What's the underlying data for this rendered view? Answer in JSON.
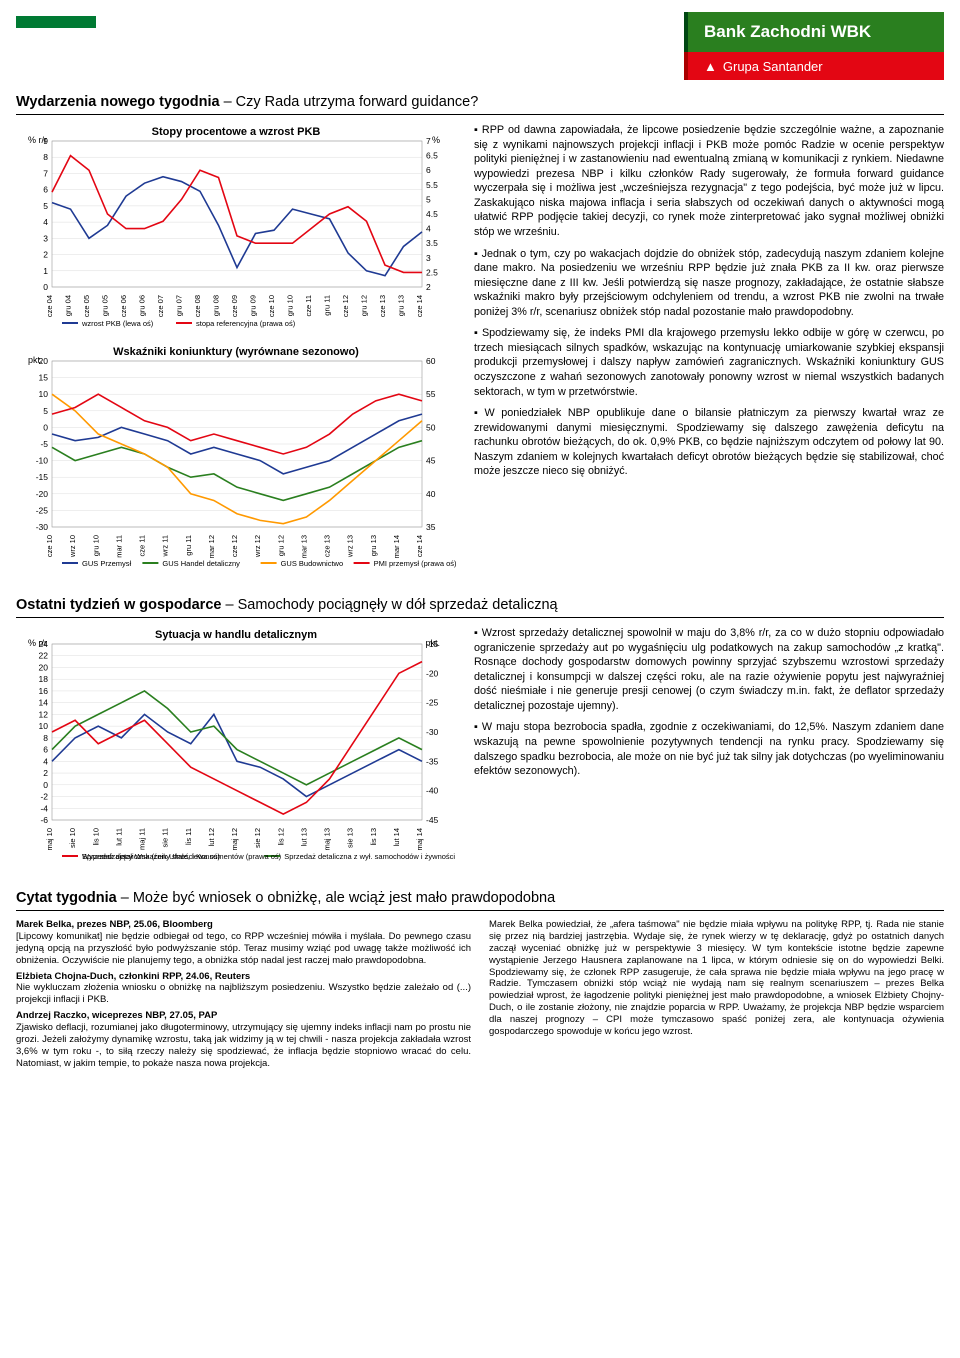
{
  "brand": {
    "name": "Bank Zachodni WBK",
    "group": "Grupa Santander"
  },
  "accent_green": "#007a33",
  "brand_green": "#2a7f1f",
  "brand_red": "#e30613",
  "section1": {
    "title": "Wydarzenia nowego tygodnia",
    "subtitle": "– Czy Rada utrzyma forward guidance?"
  },
  "chart1": {
    "title": "Stopy procentowe a wzrost PKB",
    "type": "line",
    "left_label": "% r/r",
    "right_label": "%",
    "left_ticks": [
      0,
      1,
      2,
      3,
      4,
      5,
      6,
      7,
      8,
      9
    ],
    "right_ticks": [
      2.0,
      2.5,
      3.0,
      3.5,
      4.0,
      4.5,
      5.0,
      5.5,
      6.0,
      6.5,
      7.0
    ],
    "x_labels": [
      "cze 04",
      "gru 04",
      "cze 05",
      "gru 05",
      "cze 06",
      "gru 06",
      "cze 07",
      "gru 07",
      "cze 08",
      "gru 08",
      "cze 09",
      "gru 09",
      "cze 10",
      "gru 10",
      "cze 11",
      "gru 11",
      "cze 12",
      "gru 12",
      "cze 13",
      "gru 13",
      "cze 14"
    ],
    "series1": {
      "name": "wzrost PKB (lewa oś)",
      "color": "#1f3a93",
      "values": [
        5.2,
        4.8,
        3.0,
        3.8,
        5.6,
        6.4,
        6.8,
        6.5,
        5.9,
        3.8,
        1.2,
        3.3,
        3.5,
        4.8,
        4.5,
        4.2,
        2.1,
        1.0,
        0.7,
        2.5,
        3.4
      ]
    },
    "series2": {
      "name": "stopa referencyjna (prawa oś)",
      "color": "#e30613",
      "values": [
        5.25,
        6.5,
        6.0,
        4.5,
        4.0,
        4.0,
        4.25,
        5.0,
        6.0,
        5.75,
        3.75,
        3.5,
        3.5,
        3.5,
        4.0,
        4.5,
        4.75,
        4.25,
        2.75,
        2.5,
        2.5
      ]
    }
  },
  "chart2": {
    "title": "Wskaźniki koniunktury (wyrównane sezonowo)",
    "type": "line",
    "left_label": "pkt.",
    "left_ticks": [
      -30,
      -25,
      -20,
      -15,
      -10,
      -5,
      0,
      5,
      10,
      15,
      20
    ],
    "right_ticks": [
      35,
      40,
      45,
      50,
      55,
      60
    ],
    "x_labels": [
      "cze 10",
      "wrz 10",
      "gru 10",
      "mar 11",
      "cze 11",
      "wrz 11",
      "gru 11",
      "mar 12",
      "cze 12",
      "wrz 12",
      "gru 12",
      "mar 13",
      "cze 13",
      "wrz 13",
      "gru 13",
      "mar 14",
      "cze 14"
    ],
    "series": [
      {
        "name": "GUS Przemysł",
        "color": "#1f3a93",
        "values": [
          -2,
          -4,
          -3,
          0,
          -2,
          -4,
          -8,
          -6,
          -8,
          -10,
          -14,
          -12,
          -10,
          -6,
          -2,
          2,
          4
        ]
      },
      {
        "name": "GUS Handel detaliczny",
        "color": "#2a7f1f",
        "values": [
          -6,
          -10,
          -8,
          -6,
          -8,
          -12,
          -15,
          -14,
          -18,
          -20,
          -22,
          -20,
          -18,
          -14,
          -10,
          -6,
          -4
        ]
      },
      {
        "name": "GUS Budownictwo",
        "color": "#ff9900",
        "values": [
          10,
          5,
          -2,
          -5,
          -8,
          -12,
          -20,
          -22,
          -26,
          -28,
          -29,
          -27,
          -22,
          -16,
          -10,
          -4,
          2
        ]
      },
      {
        "name": "PMI przemysł (prawa oś)",
        "color": "#e30613",
        "values": [
          52,
          53,
          55,
          53,
          51,
          50,
          48,
          49,
          48,
          47,
          46,
          47,
          49,
          52,
          54,
          55,
          54
        ]
      }
    ]
  },
  "bullets1": [
    "RPP od dawna zapowiadała, że lipcowe posiedzenie będzie szczególnie ważne, a zapoznanie się z wynikami najnowszych projekcji inflacji i PKB może pomóc Radzie w ocenie perspektyw polityki pieniężnej i w zastanowieniu nad ewentualną zmianą w komunikacji z rynkiem. Niedawne wypowiedzi prezesa NBP i kilku członków Rady sugerowały, że formuła forward guidance wyczerpała się i możliwa jest „wcześniejsza rezygnacja\" z tego podejścia, być może już w lipcu. Zaskakująco niska majowa inflacja i seria słabszych od oczekiwań danych o aktywności mogą ułatwić RPP podjęcie takiej decyzji, co rynek może zinterpretować jako sygnał możliwej obniżki stóp we wrześniu.",
    "Jednak o tym, czy po wakacjach dojdzie do obniżek stóp, zadecydują naszym zdaniem kolejne dane makro. Na posiedzeniu we wrześniu RPP będzie już znała PKB za II kw. oraz pierwsze miesięczne dane z III kw. Jeśli potwierdzą się nasze prognozy, zakładające, że ostatnie słabsze wskaźniki makro były przejściowym odchyleniem od trendu, a wzrost PKB nie zwolni na trwałe poniżej 3% r/r, scenariusz obniżek stóp nadal pozostanie mało prawdopodobny.",
    "Spodziewamy się, że indeks PMI dla krajowego przemysłu lekko odbije w górę w czerwcu, po trzech miesiącach silnych spadków, wskazując na kontynuację umiarkowanie szybkiej ekspansji produkcji przemysłowej i dalszy napływ zamówień zagranicznych. Wskaźniki koniunktury GUS oczyszczone z wahań sezonowych zanotowały ponowny wzrost w niemal wszystkich badanych sektorach, w tym w przetwórstwie.",
    "W poniedziałek NBP opublikuje dane o bilansie płatniczym za pierwszy kwartał wraz ze zrewidowanymi danymi miesięcznymi. Spodziewamy się dalszego zawężenia deficytu na rachunku obrotów bieżących, do ok. 0,9% PKB, co będzie najniższym odczytem od połowy lat 90. Naszym zdaniem w kolejnych kwartałach deficyt obrotów bieżących będzie się stabilizował, choć może jeszcze nieco się obniżyć."
  ],
  "section2": {
    "title": "Ostatni tydzień w gospodarce",
    "subtitle": "– Samochody pociągnęły w dół sprzedaż detaliczną"
  },
  "chart3": {
    "title": "Sytuacja w handlu detalicznym",
    "type": "line",
    "left_label": "% r/r",
    "right_label": "pkt.",
    "left_ticks": [
      -6,
      -4,
      -2,
      0,
      2,
      4,
      6,
      8,
      10,
      12,
      14,
      16,
      18,
      20,
      22,
      24
    ],
    "right_ticks": [
      -45,
      -40,
      -35,
      -30,
      -25,
      -20,
      -15
    ],
    "x_labels": [
      "maj 10",
      "sie 10",
      "lis 10",
      "lut 11",
      "maj 11",
      "sie 11",
      "lis 11",
      "lut 12",
      "maj 12",
      "sie 12",
      "lis 12",
      "lut 13",
      "maj 13",
      "sie 13",
      "lis 13",
      "lut 14",
      "maj 14"
    ],
    "series": [
      {
        "name": "Sprzedaż detaliczna (ceny stałe, lewa oś)",
        "color": "#1f3a93",
        "values": [
          4,
          8,
          10,
          8,
          12,
          9,
          7,
          12,
          4,
          3,
          1,
          -2,
          0,
          2,
          4,
          6,
          4
        ]
      },
      {
        "name": "Sprzedaż detaliczna z wył. samochodów i żywności",
        "color": "#2a7f1f",
        "values": [
          6,
          10,
          12,
          14,
          16,
          13,
          9,
          10,
          6,
          4,
          2,
          0,
          2,
          4,
          6,
          8,
          6
        ]
      },
      {
        "name": "Wyprzedzający Wskaźnik Ufności Konsumentów (prawa oś)",
        "color": "#e30613",
        "values": [
          -30,
          -28,
          -32,
          -30,
          -28,
          -32,
          -36,
          -38,
          -40,
          -42,
          -44,
          -42,
          -38,
          -32,
          -26,
          -20,
          -18
        ]
      }
    ]
  },
  "bullets2": [
    "Wzrost sprzedaży detalicznej spowolnił w maju do 3,8% r/r, za co w dużo stopniu odpowiadało ograniczenie sprzedaży aut po wygaśnięciu ulg podatkowych na zakup samochodów „z kratką\". Rosnące dochody gospodarstw domowych powinny sprzyjać szybszemu wzrostowi sprzedaży detalicznej i konsumpcji w dalszej części roku, ale na razie ożywienie popytu jest najwyraźniej dość nieśmiałe i nie generuje presji cenowej (o czym świadczy m.in. fakt, że deflator sprzedaży detalicznej pozostaje ujemny).",
    "W maju stopa bezrobocia spadła, zgodnie z oczekiwaniami, do 12,5%. Naszym zdaniem dane wskazują na pewne spowolnienie pozytywnych tendencji na rynku pracy. Spodziewamy się dalszego spadku bezrobocia, ale może on nie być już tak silny jak dotychczas (po wyeliminowaniu efektów sezonowych)."
  ],
  "section3": {
    "title": "Cytat tygodnia",
    "subtitle": "– Może być wniosek o obniżkę, ale wciąż jest mało prawdopodobna"
  },
  "quotes_left": [
    {
      "h": "Marek Belka, prezes NBP, 25.06, Bloomberg",
      "t": "[Lipcowy komunikat] nie będzie odbiegał od tego, co RPP wcześniej mówiła i myślała. Do pewnego czasu jedyną opcją na przyszłość było podwyższanie stóp. Teraz musimy wziąć pod uwagę także możliwość ich obniżenia. Oczywiście nie planujemy tego, a obniżka stóp nadal jest raczej mało prawdopodobna."
    },
    {
      "h": "Elżbieta Chojna-Duch, członkini RPP, 24.06, Reuters",
      "t": "Nie wykluczam złożenia wniosku o obniżkę na najbliższym posiedzeniu. Wszystko będzie zależało od (...) projekcji inflacji i PKB."
    },
    {
      "h": "Andrzej Raczko, wiceprezes NBP, 27.05, PAP",
      "t": "Zjawisko deflacji, rozumianej jako długoterminowy, utrzymujący się ujemny indeks inflacji nam po prostu nie grozi. Jeżeli założymy dynamikę wzrostu, taką jak widzimy ją w tej chwili - nasza projekcja zakładała wzrost 3,6% w tym roku -, to siłą rzeczy należy się spodziewać, że inflacja będzie stopniowo wracać do celu. Natomiast, w jakim tempie, to pokaże nasza nowa projekcja."
    }
  ],
  "quotes_right": "Marek Belka powiedział, że „afera taśmowa\" nie będzie miała wpływu na politykę RPP, tj. Rada nie stanie się przez nią bardziej jastrzębia. Wydaje się, że rynek wierzy w tę deklarację, gdyż po ostatnich danych zaczął wyceniać obniżkę już w perspektywie 3 miesięcy. W tym kontekście istotne będzie zapewne wystąpienie Jerzego Hausnera zaplanowane na 1 lipca, w którym odniesie się on do wypowiedzi Belki. Spodziewamy się, że członek RPP zasugeruje, że cała sprawa nie będzie miała wpływu na jego pracę w Radzie. Tymczasem obniżki stóp wciąż nie wydają nam się realnym scenariuszem – prezes Belka powiedział wprost, że łagodzenie polityki pieniężnej jest mało prawdopodobne, a wniosek Elżbiety Chojny-Duch, o ile zostanie złożony, nie znajdzie poparcia w RPP. Uważamy, że projekcja NBP będzie wsparciem dla naszej prognozy – CPI może tymczasowo spaść poniżej zera, ale kontynuacja ożywienia gospodarczego spowoduje w końcu jego wzrost."
}
